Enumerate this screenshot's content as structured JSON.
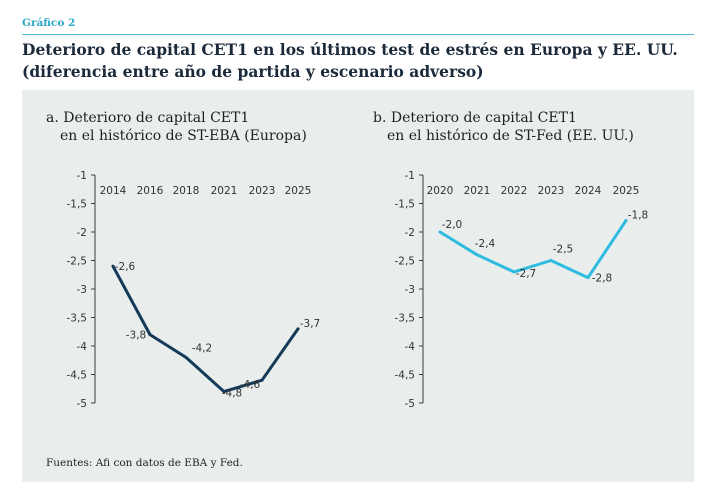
{
  "figure_label": "Gráfico 2",
  "title": {
    "line1": "Deterioro de capital CET1 en los últimos test de estrés en Europa y EE. UU.",
    "line2": "(diferencia entre año de partida y escenario adverso)"
  },
  "source": "Fuentes: Afi con datos de EBA y Fed.",
  "colors": {
    "accent": "#2aa7c9",
    "europe_line": "#143a5a",
    "us_line": "#2fbbe0",
    "panel_bg": "#e9eeed"
  },
  "chart_data": [
    {
      "type": "line",
      "title_lines": [
        "a. Deterioro de capital CET1",
        "en el histórico de ST-EBA (Europa)"
      ],
      "x": [
        "2014",
        "2016",
        "2018",
        "2021",
        "2023",
        "2025"
      ],
      "y_ticks": [
        "-1",
        "-1,5",
        "-2",
        "-2,5",
        "-3",
        "-3,5",
        "-4",
        "-4,5",
        "-5"
      ],
      "ylim": [
        -5,
        -1
      ],
      "series": [
        {
          "values": [
            -2.6,
            -3.8,
            -4.2,
            -4.8,
            -4.6,
            -3.7
          ],
          "labels": [
            "-2,6",
            "-3,8",
            "-4,2",
            "-4,8",
            "-4,6",
            "-3,7"
          ]
        }
      ]
    },
    {
      "type": "line",
      "title_lines": [
        "b. Deterioro de capital CET1",
        "en el histórico de ST-Fed (EE. UU.)"
      ],
      "x": [
        "2020",
        "2021",
        "2022",
        "2023",
        "2024",
        "2025"
      ],
      "y_ticks": [
        "-1",
        "-1,5",
        "-2",
        "-2,5",
        "-3",
        "-3,5",
        "-4",
        "-4,5",
        "-5"
      ],
      "ylim": [
        -5,
        -1
      ],
      "series": [
        {
          "values": [
            -2.0,
            -2.4,
            -2.7,
            -2.5,
            -2.8,
            -1.8
          ],
          "labels": [
            "-2,0",
            "-2,4",
            "-2,7",
            "-2,5",
            "-2,8",
            "-1,8"
          ]
        }
      ]
    }
  ]
}
